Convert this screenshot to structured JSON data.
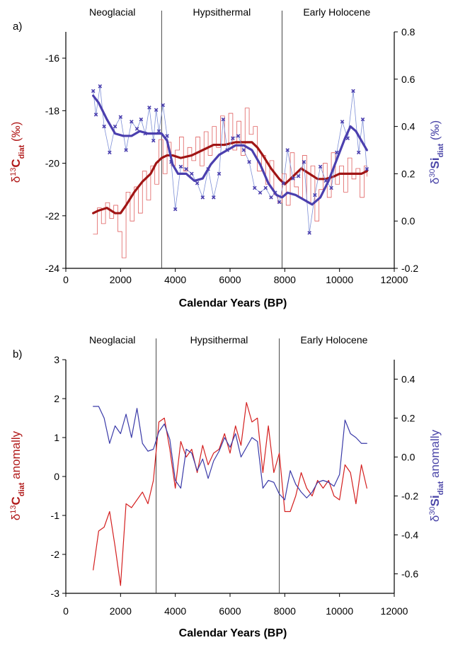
{
  "colors": {
    "red_thin": "#e06060",
    "red_thick": "#a01515",
    "blue_thin": "#7d8fd6",
    "blue_thick": "#4b3fae",
    "red_line_b": "#d42020",
    "blue_line_b": "#3a3aa8",
    "axis": "#000000"
  },
  "chart_data": [
    {
      "type": "line",
      "panel_label": "a)",
      "xlabel": "Calendar Years (BP)",
      "xlim": [
        0,
        12000
      ],
      "xticks": [
        0,
        2000,
        4000,
        6000,
        8000,
        10000,
        12000
      ],
      "ylabel_left": {
        "pre": "δ",
        "sup": "13",
        "main": "C",
        "sub": "diat",
        "post": " (‰)"
      },
      "ylabel_right": {
        "pre": "δ",
        "sup": "30",
        "main": "Si",
        "sub": "diat",
        "post": " (‰)"
      },
      "ylim_left": [
        -24,
        -15
      ],
      "yticks_left": [
        -24,
        -22,
        -20,
        -18,
        -16
      ],
      "ylim_right": [
        -0.2,
        0.8
      ],
      "yticks_right": [
        -0.2,
        0.0,
        0.2,
        0.4,
        0.6,
        0.8
      ],
      "boundaries": [
        3500,
        7900
      ],
      "eras": [
        {
          "label": "Neoglacial",
          "x": 1700
        },
        {
          "label": "Hypsithermal",
          "x": 5700
        },
        {
          "label": "Early Holocene",
          "x": 9900
        }
      ],
      "series": [
        {
          "axis": "left",
          "style": "thin-red-step",
          "x": [
            1000,
            1150,
            1300,
            1450,
            1600,
            1750,
            1900,
            2050,
            2200,
            2350,
            2500,
            2650,
            2800,
            2950,
            3100,
            3250,
            3400,
            3550,
            3700,
            3850,
            4000,
            4150,
            4300,
            4450,
            4600,
            4750,
            4900,
            5050,
            5200,
            5350,
            5500,
            5650,
            5800,
            5950,
            6100,
            6250,
            6400,
            6550,
            6700,
            6850,
            7000,
            7150,
            7300,
            7450,
            7600,
            7750,
            7900,
            8050,
            8200,
            8350,
            8500,
            8650,
            8800,
            8950,
            9100,
            9250,
            9400,
            9550,
            9700,
            9850,
            10000,
            10150,
            10300,
            10450,
            10600,
            10750,
            10900,
            11000
          ],
          "values": [
            -22.7,
            -21.7,
            -22.3,
            -21.5,
            -22.1,
            -21.6,
            -22.6,
            -23.6,
            -21.1,
            -22.2,
            -20.9,
            -21.9,
            -20.3,
            -21.4,
            -20.1,
            -20.8,
            -19.1,
            -20.4,
            -19.2,
            -20.1,
            -19.5,
            -19.0,
            -20.3,
            -19.4,
            -19.9,
            -19.0,
            -20.1,
            -18.8,
            -19.7,
            -18.6,
            -19.4,
            -18.2,
            -19.3,
            -18.1,
            -19.5,
            -18.4,
            -19.7,
            -17.9,
            -18.9,
            -18.6,
            -20.3,
            -19.7,
            -20.8,
            -19.9,
            -21.2,
            -21.5,
            -20.4,
            -21.6,
            -19.6,
            -20.9,
            -21.3,
            -19.7,
            -21.5,
            -20.1,
            -22.2,
            -21.0,
            -20.0,
            -21.3,
            -19.6,
            -20.8,
            -20.1,
            -21.1,
            -19.8,
            -20.6,
            -20.2,
            -21.3,
            -20.1,
            -20.5
          ]
        },
        {
          "axis": "left",
          "style": "thick-red-smooth",
          "x": [
            1000,
            1200,
            1500,
            1800,
            2000,
            2200,
            2500,
            2800,
            3100,
            3300,
            3500,
            3700,
            3900,
            4200,
            4600,
            5000,
            5400,
            5800,
            6200,
            6600,
            6800,
            7000,
            7200,
            7500,
            7800,
            8000,
            8300,
            8600,
            8900,
            9200,
            9500,
            9800,
            10000,
            10300,
            10600,
            10800,
            11000
          ],
          "values": [
            -21.9,
            -21.8,
            -21.7,
            -21.9,
            -21.9,
            -21.6,
            -21.1,
            -20.7,
            -20.4,
            -20.0,
            -19.8,
            -19.7,
            -19.7,
            -19.8,
            -19.7,
            -19.5,
            -19.3,
            -19.3,
            -19.2,
            -19.2,
            -19.2,
            -19.4,
            -19.7,
            -20.2,
            -20.6,
            -20.8,
            -20.5,
            -20.2,
            -20.4,
            -20.6,
            -20.6,
            -20.5,
            -20.4,
            -20.4,
            -20.4,
            -20.4,
            -20.3
          ]
        },
        {
          "axis": "right",
          "style": "thin-blue-markers",
          "x": [
            1000,
            1100,
            1250,
            1400,
            1600,
            1800,
            2000,
            2200,
            2400,
            2600,
            2750,
            2900,
            3050,
            3200,
            3300,
            3400,
            3550,
            3700,
            3850,
            4000,
            4200,
            4400,
            4600,
            4800,
            5000,
            5200,
            5400,
            5600,
            5750,
            5900,
            6100,
            6300,
            6500,
            6700,
            6900,
            7100,
            7300,
            7500,
            7650,
            7800,
            7950,
            8100,
            8300,
            8500,
            8700,
            8900,
            9100,
            9300,
            9500,
            9700,
            9900,
            10100,
            10300,
            10500,
            10700,
            10850,
            11000
          ],
          "values": [
            0.55,
            0.45,
            0.57,
            0.4,
            0.29,
            0.4,
            0.44,
            0.3,
            0.42,
            0.39,
            0.43,
            0.37,
            0.48,
            0.34,
            0.47,
            0.38,
            0.49,
            0.36,
            0.25,
            0.05,
            0.23,
            0.22,
            0.2,
            0.16,
            0.1,
            0.22,
            0.1,
            0.2,
            0.43,
            0.3,
            0.35,
            0.36,
            0.3,
            0.25,
            0.14,
            0.12,
            0.14,
            0.1,
            0.12,
            0.08,
            0.16,
            0.3,
            0.18,
            0.19,
            0.25,
            -0.05,
            0.11,
            0.23,
            0.17,
            0.14,
            0.29,
            0.42,
            0.35,
            0.55,
            0.29,
            0.43,
            0.22
          ]
        },
        {
          "axis": "right",
          "style": "thick-blue-smooth",
          "x": [
            1000,
            1200,
            1500,
            1800,
            2100,
            2400,
            2700,
            3000,
            3300,
            3500,
            3700,
            3900,
            4100,
            4400,
            4700,
            5000,
            5300,
            5600,
            5900,
            6200,
            6500,
            6800,
            7100,
            7400,
            7700,
            7900,
            8100,
            8400,
            8700,
            9000,
            9300,
            9600,
            9900,
            10200,
            10400,
            10600,
            10800,
            11000
          ],
          "values": [
            0.53,
            0.5,
            0.43,
            0.37,
            0.36,
            0.36,
            0.38,
            0.37,
            0.37,
            0.37,
            0.34,
            0.24,
            0.2,
            0.2,
            0.17,
            0.18,
            0.24,
            0.28,
            0.3,
            0.32,
            0.32,
            0.3,
            0.24,
            0.16,
            0.11,
            0.1,
            0.12,
            0.11,
            0.09,
            0.07,
            0.1,
            0.17,
            0.26,
            0.35,
            0.4,
            0.38,
            0.34,
            0.3
          ]
        }
      ]
    },
    {
      "type": "line",
      "panel_label": "b)",
      "xlabel": "Calendar Years (BP)",
      "xlim": [
        0,
        12000
      ],
      "xticks": [
        0,
        2000,
        4000,
        6000,
        8000,
        10000,
        12000
      ],
      "ylabel_left": {
        "pre": "δ",
        "sup": "13",
        "main": "C",
        "sub": "diat",
        "post": " anomally"
      },
      "ylabel_right": {
        "pre": "δ",
        "sup": "30",
        "main": "Si",
        "sub": "diat",
        "post": " anomally"
      },
      "ylim_left": [
        -3,
        3
      ],
      "yticks_left": [
        -3,
        -2,
        -1,
        0,
        1,
        2,
        3
      ],
      "ylim_right": [
        -0.7,
        0.5
      ],
      "yticks_right": [
        -0.6,
        -0.4,
        -0.2,
        0.0,
        0.2,
        0.4
      ],
      "boundaries": [
        3300,
        7800
      ],
      "eras": [
        {
          "label": "Neoglacial",
          "x": 1700
        },
        {
          "label": "Hypsithermal",
          "x": 5600
        },
        {
          "label": "Early Holocene",
          "x": 9800
        }
      ],
      "series": [
        {
          "axis": "left",
          "style": "red-line",
          "x": [
            1000,
            1200,
            1400,
            1600,
            1800,
            2000,
            2200,
            2400,
            2600,
            2800,
            3000,
            3200,
            3400,
            3600,
            3800,
            4000,
            4200,
            4400,
            4600,
            4800,
            5000,
            5200,
            5400,
            5600,
            5800,
            6000,
            6200,
            6400,
            6600,
            6800,
            7000,
            7200,
            7400,
            7600,
            7800,
            8000,
            8200,
            8400,
            8600,
            8800,
            9000,
            9200,
            9400,
            9600,
            9800,
            10000,
            10200,
            10400,
            10600,
            10800,
            11000
          ],
          "values": [
            -2.4,
            -1.4,
            -1.3,
            -0.9,
            -1.8,
            -2.8,
            -0.7,
            -0.8,
            -0.6,
            -0.4,
            -0.7,
            -0.1,
            1.4,
            1.5,
            0.7,
            -0.3,
            0.9,
            0.5,
            0.7,
            0.1,
            0.8,
            0.3,
            0.6,
            0.7,
            1.1,
            0.6,
            1.3,
            0.8,
            1.9,
            1.4,
            1.5,
            0.1,
            1.3,
            0.1,
            0.6,
            -0.9,
            -0.9,
            -0.5,
            0.1,
            -0.3,
            -0.5,
            -0.1,
            -0.3,
            -0.1,
            -0.5,
            -0.6,
            0.3,
            0.1,
            -0.7,
            0.3,
            -0.3
          ]
        },
        {
          "axis": "right",
          "style": "blue-line",
          "x": [
            1000,
            1200,
            1400,
            1600,
            1800,
            2000,
            2200,
            2400,
            2600,
            2800,
            3000,
            3200,
            3400,
            3600,
            3800,
            4000,
            4200,
            4400,
            4600,
            4800,
            5000,
            5200,
            5400,
            5600,
            5800,
            6000,
            6200,
            6400,
            6600,
            6800,
            7000,
            7200,
            7400,
            7600,
            7800,
            8000,
            8200,
            8400,
            8600,
            8800,
            9000,
            9200,
            9400,
            9600,
            9800,
            10000,
            10200,
            10400,
            10600,
            10800,
            11000
          ],
          "values": [
            0.26,
            0.26,
            0.2,
            0.07,
            0.16,
            0.12,
            0.22,
            0.1,
            0.25,
            0.07,
            0.03,
            0.04,
            0.13,
            0.17,
            0.09,
            -0.12,
            -0.16,
            0.04,
            0.02,
            -0.07,
            -0.01,
            -0.11,
            -0.02,
            0.03,
            0.1,
            0.05,
            0.12,
            0.0,
            0.05,
            0.1,
            0.08,
            -0.16,
            -0.12,
            -0.13,
            -0.19,
            -0.22,
            -0.07,
            -0.14,
            -0.18,
            -0.21,
            -0.18,
            -0.13,
            -0.12,
            -0.13,
            -0.15,
            -0.09,
            0.19,
            0.12,
            0.1,
            0.07,
            0.07
          ]
        }
      ]
    }
  ]
}
